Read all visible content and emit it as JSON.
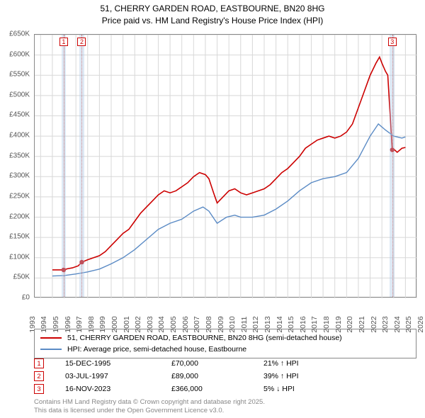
{
  "title_line1": "51, CHERRY GARDEN ROAD, EASTBOURNE, BN20 8HG",
  "title_line2": "Price paid vs. HM Land Registry's House Price Index (HPI)",
  "chart": {
    "type": "line",
    "x_years": [
      1993,
      1994,
      1995,
      1996,
      1997,
      1998,
      1999,
      2000,
      2001,
      2002,
      2003,
      2004,
      2005,
      2006,
      2007,
      2008,
      2009,
      2010,
      2011,
      2012,
      2013,
      2014,
      2015,
      2016,
      2017,
      2018,
      2019,
      2020,
      2021,
      2022,
      2023,
      2024,
      2025,
      2026
    ],
    "xlim": [
      1993.5,
      2026
    ],
    "ylim": [
      0,
      650000
    ],
    "ytick_step": 50000,
    "y_tick_labels": [
      "£0",
      "£50K",
      "£100K",
      "£150K",
      "£200K",
      "£250K",
      "£300K",
      "£350K",
      "£400K",
      "£450K",
      "£500K",
      "£550K",
      "£600K",
      "£650K"
    ],
    "grid_color": "#d8d8d8",
    "background_color": "#ffffff",
    "axis_fontsize": 10.5,
    "series": [
      {
        "name": "property",
        "label": "51, CHERRY GARDEN ROAD, EASTBOURNE, BN20 8HG (semi-detached house)",
        "color": "#cc0000",
        "line_width": 1.6,
        "points": [
          [
            1995.0,
            70000
          ],
          [
            1995.96,
            70000
          ],
          [
            1996.3,
            73000
          ],
          [
            1996.7,
            75000
          ],
          [
            1997.2,
            80000
          ],
          [
            1997.5,
            89000
          ],
          [
            1998.0,
            95000
          ],
          [
            1998.5,
            100000
          ],
          [
            1999.0,
            105000
          ],
          [
            1999.5,
            115000
          ],
          [
            2000.0,
            130000
          ],
          [
            2000.5,
            145000
          ],
          [
            2001.0,
            160000
          ],
          [
            2001.5,
            170000
          ],
          [
            2002.0,
            190000
          ],
          [
            2002.5,
            210000
          ],
          [
            2003.0,
            225000
          ],
          [
            2003.5,
            240000
          ],
          [
            2004.0,
            255000
          ],
          [
            2004.5,
            265000
          ],
          [
            2005.0,
            260000
          ],
          [
            2005.5,
            265000
          ],
          [
            2006.0,
            275000
          ],
          [
            2006.5,
            285000
          ],
          [
            2007.0,
            300000
          ],
          [
            2007.5,
            310000
          ],
          [
            2008.0,
            305000
          ],
          [
            2008.3,
            295000
          ],
          [
            2008.7,
            260000
          ],
          [
            2009.0,
            235000
          ],
          [
            2009.5,
            250000
          ],
          [
            2010.0,
            265000
          ],
          [
            2010.5,
            270000
          ],
          [
            2011.0,
            260000
          ],
          [
            2011.5,
            255000
          ],
          [
            2012.0,
            260000
          ],
          [
            2012.5,
            265000
          ],
          [
            2013.0,
            270000
          ],
          [
            2013.5,
            280000
          ],
          [
            2014.0,
            295000
          ],
          [
            2014.5,
            310000
          ],
          [
            2015.0,
            320000
          ],
          [
            2015.5,
            335000
          ],
          [
            2016.0,
            350000
          ],
          [
            2016.5,
            370000
          ],
          [
            2017.0,
            380000
          ],
          [
            2017.5,
            390000
          ],
          [
            2018.0,
            395000
          ],
          [
            2018.5,
            400000
          ],
          [
            2019.0,
            395000
          ],
          [
            2019.5,
            400000
          ],
          [
            2020.0,
            410000
          ],
          [
            2020.5,
            430000
          ],
          [
            2021.0,
            470000
          ],
          [
            2021.5,
            510000
          ],
          [
            2022.0,
            550000
          ],
          [
            2022.5,
            580000
          ],
          [
            2022.8,
            595000
          ],
          [
            2023.0,
            580000
          ],
          [
            2023.3,
            560000
          ],
          [
            2023.5,
            550000
          ],
          [
            2023.88,
            366000
          ],
          [
            2024.0,
            368000
          ],
          [
            2024.3,
            360000
          ],
          [
            2024.7,
            370000
          ],
          [
            2025.0,
            372000
          ]
        ]
      },
      {
        "name": "hpi",
        "label": "HPI: Average price, semi-detached house, Eastbourne",
        "color": "#5b8bc5",
        "line_width": 1.4,
        "points": [
          [
            1995.0,
            55000
          ],
          [
            1996.0,
            56000
          ],
          [
            1997.0,
            60000
          ],
          [
            1998.0,
            65000
          ],
          [
            1999.0,
            72000
          ],
          [
            2000.0,
            85000
          ],
          [
            2001.0,
            100000
          ],
          [
            2002.0,
            120000
          ],
          [
            2003.0,
            145000
          ],
          [
            2004.0,
            170000
          ],
          [
            2005.0,
            185000
          ],
          [
            2006.0,
            195000
          ],
          [
            2007.0,
            215000
          ],
          [
            2007.8,
            225000
          ],
          [
            2008.3,
            215000
          ],
          [
            2009.0,
            185000
          ],
          [
            2009.8,
            200000
          ],
          [
            2010.5,
            205000
          ],
          [
            2011.0,
            200000
          ],
          [
            2012.0,
            200000
          ],
          [
            2013.0,
            205000
          ],
          [
            2014.0,
            220000
          ],
          [
            2015.0,
            240000
          ],
          [
            2016.0,
            265000
          ],
          [
            2017.0,
            285000
          ],
          [
            2018.0,
            295000
          ],
          [
            2019.0,
            300000
          ],
          [
            2020.0,
            310000
          ],
          [
            2021.0,
            345000
          ],
          [
            2022.0,
            400000
          ],
          [
            2022.7,
            430000
          ],
          [
            2023.3,
            415000
          ],
          [
            2024.0,
            400000
          ],
          [
            2024.7,
            395000
          ],
          [
            2025.0,
            398000
          ]
        ]
      }
    ],
    "sale_points": [
      {
        "x": 1995.96,
        "y": 70000,
        "color": "#cc0000"
      },
      {
        "x": 1997.5,
        "y": 89000,
        "color": "#cc0000"
      },
      {
        "x": 2023.88,
        "y": 366000,
        "color": "#cc0000"
      }
    ],
    "shaded_bands": [
      {
        "x": 1995.96,
        "width_years": 0.4,
        "marker": "1",
        "marker_color": "#cc0000"
      },
      {
        "x": 1997.5,
        "width_years": 0.4,
        "marker": "2",
        "marker_color": "#cc0000"
      },
      {
        "x": 2023.88,
        "width_years": 0.4,
        "marker": "3",
        "marker_color": "#cc0000"
      }
    ]
  },
  "legend": {
    "border_color": "#888888",
    "items": [
      {
        "color": "#cc0000",
        "label": "51, CHERRY GARDEN ROAD, EASTBOURNE, BN20 8HG (semi-detached house)"
      },
      {
        "color": "#5b8bc5",
        "label": "HPI: Average price, semi-detached house, Eastbourne"
      }
    ]
  },
  "annotations": [
    {
      "n": "1",
      "color": "#cc0000",
      "date": "15-DEC-1995",
      "price": "£70,000",
      "delta": "21% ↑ HPI"
    },
    {
      "n": "2",
      "color": "#cc0000",
      "date": "03-JUL-1997",
      "price": "£89,000",
      "delta": "39% ↑ HPI"
    },
    {
      "n": "3",
      "color": "#cc0000",
      "date": "16-NOV-2023",
      "price": "£366,000",
      "delta": "5% ↓ HPI"
    }
  ],
  "footer_line1": "Contains HM Land Registry data © Crown copyright and database right 2025.",
  "footer_line2": "This data is licensed under the Open Government Licence v3.0."
}
